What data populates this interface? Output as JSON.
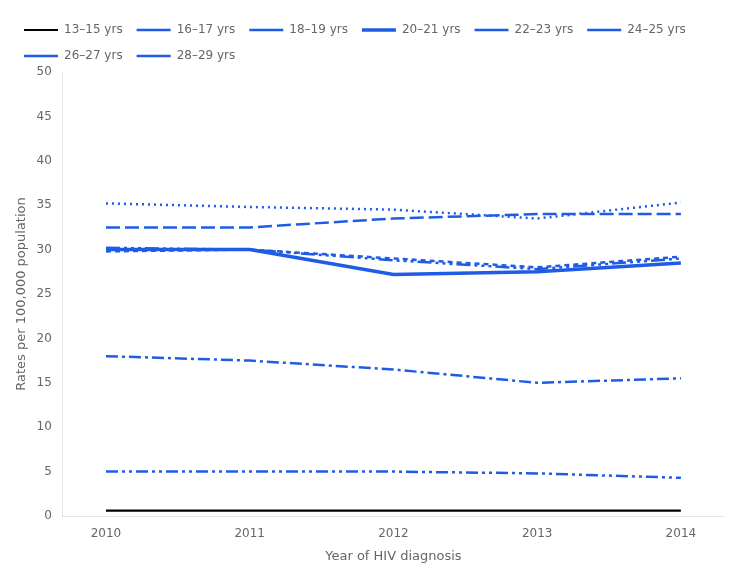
{
  "chart_data": {
    "type": "line",
    "x": [
      2010,
      2011,
      2012,
      2013,
      2014
    ],
    "xlim": [
      2009.7,
      2014.3
    ],
    "xticks": [
      2010,
      2011,
      2012,
      2013,
      2014
    ],
    "ylim": [
      0,
      50
    ],
    "yticks": [
      0,
      5,
      10,
      15,
      20,
      25,
      30,
      35,
      40,
      45,
      50
    ],
    "xlabel": "Year of HIV diagnosis",
    "ylabel": "Rates per 100,000 population",
    "grid": false,
    "legend": "upper left",
    "series": [
      {
        "name": "13–15 yrs",
        "color": "#000000",
        "line_style": "solid",
        "values": [
          0.6,
          0.6,
          0.6,
          0.6,
          0.6
        ]
      },
      {
        "name": "16–17 yrs",
        "color": "#1f5ce6",
        "line_style": "dashdotdot",
        "values": [
          5.0,
          5.0,
          5.0,
          4.8,
          4.3
        ]
      },
      {
        "name": "18–19 yrs",
        "color": "#1f5ce6",
        "line_style": "dashdot",
        "values": [
          18.0,
          17.5,
          16.5,
          15.0,
          15.5
        ]
      },
      {
        "name": "20–21 yrs",
        "color": "#1f5ce6",
        "line_style": "thick",
        "values": [
          30.0,
          30.0,
          27.2,
          27.5,
          28.5
        ]
      },
      {
        "name": "22–23 yrs",
        "color": "#1f5ce6",
        "line_style": "dotted",
        "values": [
          35.2,
          34.8,
          34.5,
          33.5,
          35.3
        ]
      },
      {
        "name": "24–25 yrs",
        "color": "#1f5ce6",
        "line_style": "dashed",
        "values": [
          32.5,
          32.5,
          33.5,
          34.0,
          34.0
        ]
      },
      {
        "name": "26–27 yrs",
        "color": "#1f5ce6",
        "line_style": "shortdash",
        "values": [
          29.8,
          30.0,
          29.0,
          28.0,
          29.2
        ]
      },
      {
        "name": "28–29 yrs",
        "color": "#1f5ce6",
        "line_style": "dashdotdotdot",
        "values": [
          30.2,
          30.0,
          28.8,
          27.8,
          29.0
        ]
      }
    ]
  }
}
